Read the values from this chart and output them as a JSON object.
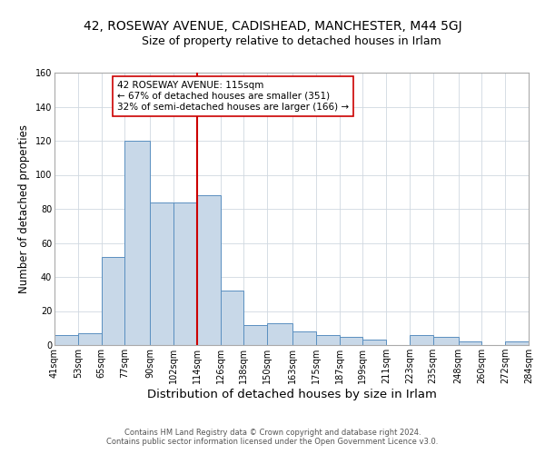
{
  "title_line1": "42, ROSEWAY AVENUE, CADISHEAD, MANCHESTER, M44 5GJ",
  "title_line2": "Size of property relative to detached houses in Irlam",
  "xlabel": "Distribution of detached houses by size in Irlam",
  "ylabel": "Number of detached properties",
  "bar_edges": [
    41,
    53,
    65,
    77,
    90,
    102,
    114,
    126,
    138,
    150,
    163,
    175,
    187,
    199,
    211,
    223,
    235,
    248,
    260,
    272,
    284
  ],
  "bar_heights": [
    6,
    7,
    52,
    120,
    84,
    84,
    88,
    32,
    12,
    13,
    8,
    6,
    5,
    3,
    0,
    6,
    5,
    2,
    0,
    2
  ],
  "bar_color": "#c8d8e8",
  "bar_edge_color": "#5a8fc0",
  "vline_x": 114,
  "vline_color": "#cc0000",
  "ylim": [
    0,
    160
  ],
  "yticks": [
    0,
    20,
    40,
    60,
    80,
    100,
    120,
    140,
    160
  ],
  "xtick_labels": [
    "41sqm",
    "53sqm",
    "65sqm",
    "77sqm",
    "90sqm",
    "102sqm",
    "114sqm",
    "126sqm",
    "138sqm",
    "150sqm",
    "163sqm",
    "175sqm",
    "187sqm",
    "199sqm",
    "211sqm",
    "223sqm",
    "235sqm",
    "248sqm",
    "260sqm",
    "272sqm",
    "284sqm"
  ],
  "annotation_title": "42 ROSEWAY AVENUE: 115sqm",
  "annotation_line1": "← 67% of detached houses are smaller (351)",
  "annotation_line2": "32% of semi-detached houses are larger (166) →",
  "footer_line1": "Contains HM Land Registry data © Crown copyright and database right 2024.",
  "footer_line2": "Contains public sector information licensed under the Open Government Licence v3.0.",
  "bg_color": "#ffffff",
  "grid_color": "#d0d8e0",
  "title1_fontsize": 10,
  "title2_fontsize": 9,
  "xlabel_fontsize": 9.5,
  "ylabel_fontsize": 8.5,
  "tick_fontsize": 7,
  "annotation_box_edge_color": "#cc0000",
  "annotation_box_face_color": "#ffffff",
  "annotation_fontsize": 7.5,
  "footer_fontsize": 6,
  "footer_color": "#555555"
}
